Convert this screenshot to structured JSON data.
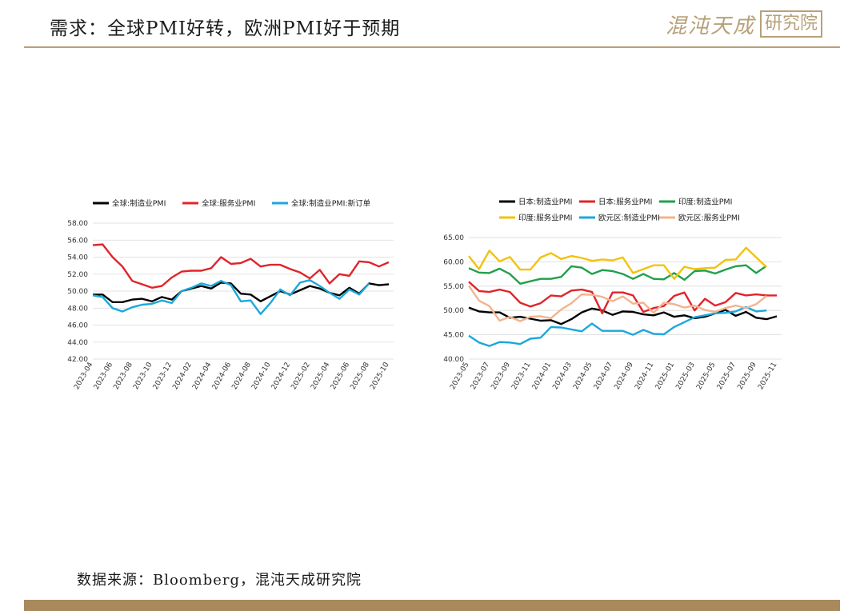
{
  "header": {
    "title": "需求：全球PMI好转，欧洲PMI好于预期",
    "logo_text": "混沌天成",
    "logo_box_text": "研究院"
  },
  "footer": {
    "source": "数据来源：Bloomberg，混沌天成研究院"
  },
  "chart_data": [
    {
      "type": "line",
      "title": "",
      "xlabel": "",
      "ylabel": "",
      "ylim": [
        42,
        58
      ],
      "yticks": [
        "42.00",
        "44.00",
        "46.00",
        "48.00",
        "50.00",
        "52.00",
        "54.00",
        "56.00",
        "58.00"
      ],
      "xticks": [
        "2023-04",
        "2023-06",
        "2023-08",
        "2023-10",
        "2023-12",
        "2024-02",
        "2024-04",
        "2024-06",
        "2024-08",
        "2024-10",
        "2024-12",
        "2025-02",
        "2025-04",
        "2025-06",
        "2025-08",
        "2025-10"
      ],
      "grid": true,
      "legend_position": "top",
      "x": [
        "2023-04",
        "2023-05",
        "2023-06",
        "2023-07",
        "2023-08",
        "2023-09",
        "2023-10",
        "2023-11",
        "2023-12",
        "2024-01",
        "2024-02",
        "2024-03",
        "2024-04",
        "2024-05",
        "2024-06",
        "2024-07",
        "2024-08",
        "2024-09",
        "2024-10",
        "2024-11",
        "2024-12",
        "2025-01",
        "2025-02",
        "2025-03",
        "2025-04",
        "2025-05",
        "2025-06",
        "2025-07",
        "2025-08",
        "2025-09",
        "2025-10"
      ],
      "series": [
        {
          "name": "全球:制造业PMI",
          "color": "#000000",
          "values": [
            49.6,
            49.6,
            48.7,
            48.7,
            49.0,
            49.1,
            48.8,
            49.3,
            49.0,
            50.0,
            50.3,
            50.6,
            50.3,
            51.0,
            50.9,
            49.7,
            49.6,
            48.8,
            49.4,
            50.0,
            49.6,
            50.1,
            50.6,
            50.3,
            49.8,
            49.5,
            50.4,
            49.7,
            50.9,
            50.7,
            50.8
          ]
        },
        {
          "name": "全球:服务业PMI",
          "color": "#e0242a",
          "values": [
            55.4,
            55.5,
            54.0,
            52.9,
            51.2,
            50.8,
            50.4,
            50.6,
            51.6,
            52.3,
            52.4,
            52.4,
            52.7,
            54.0,
            53.2,
            53.3,
            53.8,
            52.9,
            53.1,
            53.1,
            52.6,
            52.2,
            51.5,
            52.5,
            50.9,
            52.0,
            51.8,
            53.5,
            53.4,
            52.9,
            53.4
          ]
        },
        {
          "name": "全球:制造业PMI:新订单",
          "color": "#1ba8dc",
          "values": [
            49.5,
            49.3,
            48.0,
            47.6,
            48.1,
            48.4,
            48.5,
            48.9,
            48.6,
            50.0,
            50.4,
            50.9,
            50.6,
            51.2,
            50.7,
            48.8,
            48.9,
            47.3,
            48.6,
            50.2,
            49.5,
            51.0,
            51.3,
            50.6,
            49.8,
            49.1,
            50.2,
            49.6,
            50.9,
            null,
            null
          ]
        }
      ]
    },
    {
      "type": "line",
      "title": "",
      "xlabel": "",
      "ylabel": "",
      "ylim": [
        40,
        65
      ],
      "yticks": [
        "40.00",
        "45.00",
        "50.00",
        "55.00",
        "60.00",
        "65.00"
      ],
      "xticks": [
        "2023-05",
        "2023-07",
        "2023-09",
        "2023-11",
        "2024-01",
        "2024-03",
        "2024-05",
        "2024-07",
        "2024-09",
        "2024-11",
        "2025-01",
        "2025-03",
        "2025-05",
        "2025-07",
        "2025-09",
        "2025-11"
      ],
      "grid": true,
      "legend_position": "top",
      "x": [
        "2023-05",
        "2023-06",
        "2023-07",
        "2023-08",
        "2023-09",
        "2023-10",
        "2023-11",
        "2023-12",
        "2024-01",
        "2024-02",
        "2024-03",
        "2024-04",
        "2024-05",
        "2024-06",
        "2024-07",
        "2024-08",
        "2024-09",
        "2024-10",
        "2024-11",
        "2024-12",
        "2025-01",
        "2025-02",
        "2025-03",
        "2025-04",
        "2025-05",
        "2025-06",
        "2025-07",
        "2025-08",
        "2025-09",
        "2025-10",
        "2025-11"
      ],
      "series": [
        {
          "name": "日本:制造业PMI",
          "color": "#000000",
          "values": [
            50.6,
            49.8,
            49.6,
            49.6,
            48.5,
            48.7,
            48.3,
            47.9,
            48.0,
            47.2,
            48.2,
            49.6,
            50.4,
            50.0,
            49.1,
            49.8,
            49.7,
            49.2,
            49.0,
            49.6,
            48.7,
            49.0,
            48.4,
            48.7,
            49.4,
            50.1,
            48.9,
            49.7,
            48.5,
            48.2,
            48.8
          ]
        },
        {
          "name": "日本:服务业PMI",
          "color": "#e0242a",
          "values": [
            55.9,
            54.0,
            53.8,
            54.3,
            53.8,
            51.6,
            50.8,
            51.5,
            53.1,
            52.9,
            54.1,
            54.3,
            53.8,
            49.4,
            53.7,
            53.7,
            53.1,
            49.7,
            50.5,
            50.9,
            53.0,
            53.7,
            50.0,
            52.4,
            51.0,
            51.7,
            53.6,
            53.1,
            53.3,
            53.1,
            53.1
          ]
        },
        {
          "name": "印度:制造业PMI",
          "color": "#20a04a",
          "values": [
            58.7,
            57.8,
            57.7,
            58.6,
            57.5,
            55.5,
            56.0,
            56.5,
            56.5,
            56.9,
            59.1,
            58.8,
            57.5,
            58.3,
            58.1,
            57.5,
            56.5,
            57.5,
            56.5,
            56.4,
            57.7,
            56.3,
            58.1,
            58.2,
            57.6,
            58.4,
            59.1,
            59.3,
            57.7,
            59.2,
            null
          ]
        },
        {
          "name": "印度:服务业PMI",
          "color": "#f2c20f",
          "values": [
            61.2,
            58.5,
            62.3,
            60.1,
            61.0,
            58.4,
            58.4,
            60.9,
            61.8,
            60.6,
            61.2,
            60.8,
            60.2,
            60.5,
            60.3,
            60.9,
            57.7,
            58.5,
            59.3,
            59.3,
            56.5,
            59.0,
            58.5,
            58.7,
            58.8,
            60.4,
            60.5,
            62.9,
            60.9,
            58.9,
            null
          ]
        },
        {
          "name": "欧元区:制造业PMI",
          "color": "#1ba8dc",
          "values": [
            44.8,
            43.4,
            42.7,
            43.5,
            43.4,
            43.1,
            44.2,
            44.4,
            46.6,
            46.5,
            46.1,
            45.7,
            47.3,
            45.8,
            45.8,
            45.8,
            45.0,
            46.0,
            45.2,
            45.1,
            46.6,
            47.6,
            48.6,
            49.0,
            49.4,
            49.5,
            49.8,
            50.7,
            49.8,
            50.0,
            null
          ]
        },
        {
          "name": "欧元区:服务业PMI",
          "color": "#f2b48e",
          "values": [
            55.1,
            52.0,
            50.9,
            47.9,
            48.7,
            47.8,
            48.7,
            48.8,
            48.4,
            50.2,
            51.5,
            53.3,
            53.2,
            52.8,
            51.9,
            52.9,
            51.4,
            51.6,
            49.5,
            51.6,
            51.3,
            50.6,
            51.0,
            50.1,
            49.7,
            50.5,
            51.0,
            50.5,
            51.3,
            53.0,
            null
          ]
        }
      ]
    }
  ]
}
